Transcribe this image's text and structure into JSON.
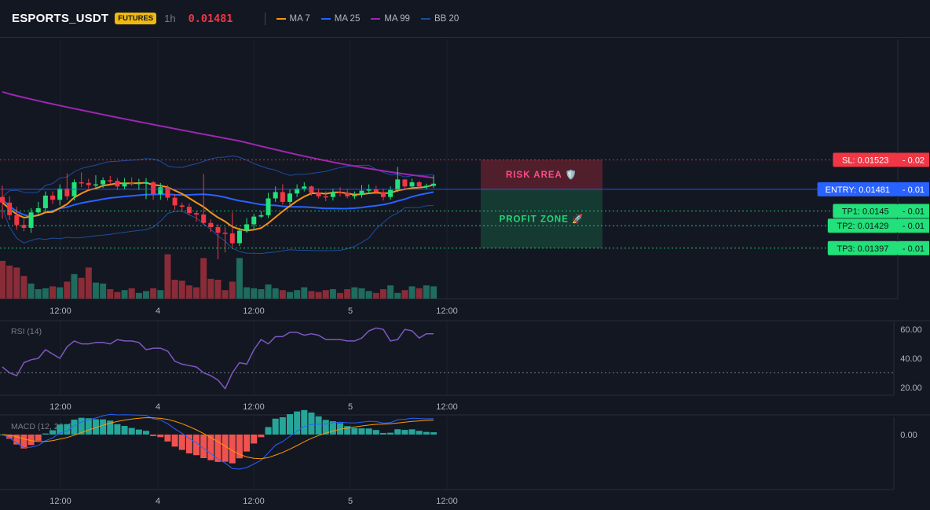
{
  "header": {
    "symbol": "ESPORTS_USDT",
    "badge": "FUTURES",
    "timeframe": "1h",
    "price": "0.01481",
    "legend": [
      {
        "label": "MA 7",
        "color": "#f7931a"
      },
      {
        "label": "MA 25",
        "color": "#2962ff"
      },
      {
        "label": "MA 99",
        "color": "#9c27b0"
      },
      {
        "label": "BB 20",
        "color": "#1e4d9c"
      }
    ]
  },
  "colors": {
    "up": "#22e07a",
    "down": "#f23645",
    "risk": "#f23645",
    "profit": "#22e07a",
    "entry": "#2962ff",
    "rsi": "#7e57c2",
    "macd_line": "#2962ff",
    "signal_line": "#ff9800"
  },
  "price_axis": {
    "max": 0.01695,
    "min": 0.01325
  },
  "levels": [
    {
      "name": "sl",
      "label": "SL: 0.01523",
      "suffix": "0.02",
      "price": 0.01523,
      "color": "#f23645",
      "style": "dotted"
    },
    {
      "name": "entry",
      "label": "ENTRY: 0.01481",
      "suffix": "0.01",
      "price": 0.01481,
      "color": "#2962ff",
      "style": "solid"
    },
    {
      "name": "tp1",
      "label": "TP1: 0.0145",
      "suffix": "0.01",
      "price": 0.0145,
      "color": "#22e07a",
      "style": "dotted"
    },
    {
      "name": "tp2",
      "label": "TP2: 0.01429",
      "suffix": "0.01",
      "price": 0.01429,
      "color": "#22e07a",
      "style": "dotted"
    },
    {
      "name": "tp3",
      "label": "TP3: 0.01397",
      "suffix": "0.01",
      "price": 0.01397,
      "color": "#22e07a",
      "style": "dotted"
    }
  ],
  "zones": {
    "risk_label": "RISK AREA 🛡️",
    "profit_label": "PROFIT ZONE 🚀"
  },
  "time_labels": [
    "12:00",
    "4",
    "12:00",
    "5",
    "12:00"
  ],
  "rsi": {
    "label": "RSI (14)",
    "ticks": [
      "60.00",
      "40.00",
      "20.00"
    ],
    "tick_values": [
      60,
      40,
      20
    ],
    "range": [
      15,
      65
    ],
    "midline": 30,
    "values": [
      34,
      30,
      28,
      37,
      39,
      40,
      46,
      43,
      40,
      48,
      52,
      50,
      50,
      51,
      51,
      50,
      53,
      52,
      52,
      51,
      46,
      47,
      47,
      45,
      38,
      36,
      35,
      34,
      30,
      28,
      25,
      19,
      30,
      37,
      36,
      46,
      53,
      50,
      55,
      55,
      58,
      58,
      56,
      57,
      56,
      53,
      53,
      53,
      52,
      52,
      54,
      59,
      61,
      60,
      52,
      53,
      60,
      59,
      54,
      57,
      57
    ]
  },
  "macd": {
    "label": "MACD (12, 26, 9)",
    "ticks": [
      "0.00"
    ],
    "zero_value": 0
  },
  "chart_data": {
    "type": "candlestick",
    "open": [
      0.0147,
      0.01462,
      0.01444,
      0.0143,
      0.01426,
      0.01448,
      0.01454,
      0.01472,
      0.01466,
      0.01482,
      0.01471,
      0.01491,
      0.0149,
      0.01487,
      0.01488,
      0.01494,
      0.01493,
      0.01485,
      0.0149,
      0.01489,
      0.0149,
      0.01491,
      0.01474,
      0.01484,
      0.01469,
      0.01458,
      0.01456,
      0.01447,
      0.01445,
      0.01433,
      0.01427,
      0.01419,
      0.01418,
      0.01404,
      0.01422,
      0.01431,
      0.01442,
      0.01444,
      0.01468,
      0.01477,
      0.01463,
      0.01475,
      0.01482,
      0.01485,
      0.01476,
      0.01471,
      0.0147,
      0.01477,
      0.01476,
      0.01471,
      0.01473,
      0.01479,
      0.01481,
      0.01477,
      0.0147,
      0.0148,
      0.01495,
      0.01485,
      0.01491,
      0.01485,
      0.01486
    ],
    "close": [
      0.01462,
      0.01444,
      0.0143,
      0.01426,
      0.01448,
      0.01454,
      0.01472,
      0.01466,
      0.01482,
      0.01471,
      0.01491,
      0.0149,
      0.01487,
      0.01488,
      0.01494,
      0.01493,
      0.01485,
      0.0149,
      0.01489,
      0.0149,
      0.01491,
      0.01474,
      0.01484,
      0.01469,
      0.01458,
      0.01456,
      0.01447,
      0.01445,
      0.01433,
      0.01427,
      0.01419,
      0.01418,
      0.01404,
      0.01422,
      0.01431,
      0.01442,
      0.01444,
      0.01468,
      0.01477,
      0.01463,
      0.01475,
      0.01482,
      0.01485,
      0.01476,
      0.01471,
      0.0147,
      0.01477,
      0.01476,
      0.01471,
      0.01473,
      0.01479,
      0.01481,
      0.01477,
      0.0147,
      0.0148,
      0.01495,
      0.01485,
      0.01491,
      0.01485,
      0.01486,
      0.01489
    ],
    "high": [
      0.01486,
      0.01471,
      0.01456,
      0.01438,
      0.01454,
      0.01463,
      0.01478,
      0.01478,
      0.01488,
      0.01504,
      0.01495,
      0.01505,
      0.01496,
      0.01501,
      0.01498,
      0.015,
      0.01497,
      0.01497,
      0.01498,
      0.01496,
      0.01497,
      0.01493,
      0.0149,
      0.01487,
      0.01474,
      0.01462,
      0.01461,
      0.0145,
      0.01503,
      0.01438,
      0.01431,
      0.01427,
      0.01448,
      0.01426,
      0.0144,
      0.01446,
      0.0145,
      0.01476,
      0.01485,
      0.01488,
      0.01481,
      0.01488,
      0.01491,
      0.01486,
      0.01482,
      0.01478,
      0.01482,
      0.01484,
      0.01481,
      0.01478,
      0.01487,
      0.01488,
      0.01486,
      0.01482,
      0.01485,
      0.01513,
      0.01494,
      0.01496,
      0.01493,
      0.01489,
      0.01501
    ],
    "low": [
      0.01439,
      0.01437,
      0.01423,
      0.01421,
      0.01419,
      0.01445,
      0.01448,
      0.0146,
      0.01458,
      0.01466,
      0.01465,
      0.01484,
      0.01482,
      0.01482,
      0.01483,
      0.01488,
      0.0148,
      0.01481,
      0.01486,
      0.0148,
      0.01467,
      0.01466,
      0.01466,
      0.01465,
      0.01452,
      0.0145,
      0.01444,
      0.01435,
      0.0143,
      0.0142,
      0.01381,
      0.01391,
      0.01399,
      0.014,
      0.01419,
      0.01425,
      0.0144,
      0.0144,
      0.01463,
      0.01459,
      0.01459,
      0.0147,
      0.01478,
      0.01472,
      0.01468,
      0.01464,
      0.01465,
      0.01471,
      0.01468,
      0.01467,
      0.01469,
      0.01474,
      0.01474,
      0.01465,
      0.01466,
      0.01477,
      0.01481,
      0.01482,
      0.01482,
      0.01481,
      0.01483
    ],
    "volume_range": [
      0,
      100
    ],
    "volume": [
      80,
      70,
      66,
      48,
      32,
      20,
      22,
      26,
      24,
      36,
      52,
      44,
      66,
      34,
      32,
      20,
      14,
      18,
      22,
      12,
      16,
      22,
      18,
      94,
      40,
      38,
      28,
      24,
      86,
      42,
      40,
      18,
      36,
      86,
      24,
      22,
      20,
      30,
      22,
      18,
      14,
      18,
      24,
      16,
      14,
      18,
      20,
      12,
      20,
      24,
      22,
      16,
      12,
      20,
      28,
      12,
      18,
      26,
      22,
      28,
      26
    ]
  }
}
